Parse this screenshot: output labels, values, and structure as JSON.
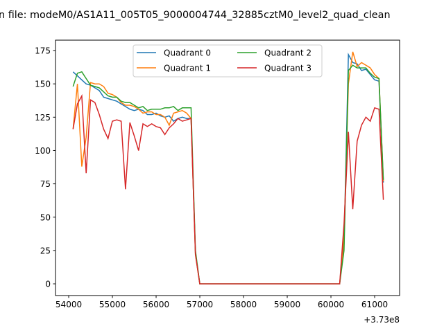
{
  "chart_data": {
    "type": "line",
    "title": "n file: modeM0/AS1A11_005T05_9000004744_32885cztM0_level2_quad_clean",
    "xlabel": "",
    "ylabel": "",
    "x_offset_label": "+3.73e8",
    "xlim": [
      53698,
      61571
    ],
    "ylim": [
      -8.8,
      182.8
    ],
    "xticks": [
      54000,
      55000,
      56000,
      57000,
      58000,
      59000,
      60000,
      61000
    ],
    "xtick_labels": [
      "54000",
      "55000",
      "56000",
      "57000",
      "58000",
      "59000",
      "60000",
      "61000"
    ],
    "yticks": [
      0,
      25,
      50,
      75,
      100,
      125,
      150,
      175
    ],
    "ytick_labels": [
      "0",
      "25",
      "50",
      "75",
      "100",
      "125",
      "150",
      "175"
    ],
    "grid": false,
    "legend_position": "top-center",
    "x_start": 54100,
    "x_step": 100,
    "series": [
      {
        "name": "Quadrant 0",
        "color": "#1f77b4",
        "values": [
          159,
          156,
          153,
          150,
          149,
          147,
          145,
          140,
          139,
          138,
          137,
          135,
          133,
          131,
          130,
          131,
          130,
          127,
          127,
          128,
          126,
          125,
          126,
          122,
          124,
          125,
          124,
          124,
          23,
          0,
          0,
          0,
          0,
          0,
          0,
          0,
          0,
          0,
          0,
          0,
          0,
          0,
          0,
          0,
          0,
          0,
          0,
          0,
          0,
          0,
          0,
          0,
          0,
          0,
          0,
          0,
          0,
          0,
          0,
          0,
          0,
          0,
          30,
          172,
          166,
          165,
          160,
          161,
          157,
          153,
          152,
          76
        ]
      },
      {
        "name": "Quadrant 1",
        "color": "#ff7f0e",
        "values": [
          116,
          150,
          88,
          110,
          151,
          150,
          150,
          148,
          143,
          142,
          140,
          136,
          134,
          134,
          133,
          131,
          128,
          129,
          129,
          127,
          127,
          125,
          119,
          128,
          129,
          130,
          128,
          124,
          22,
          0,
          0,
          0,
          0,
          0,
          0,
          0,
          0,
          0,
          0,
          0,
          0,
          0,
          0,
          0,
          0,
          0,
          0,
          0,
          0,
          0,
          0,
          0,
          0,
          0,
          0,
          0,
          0,
          0,
          0,
          0,
          0,
          0,
          35,
          150,
          174,
          163,
          166,
          164,
          162,
          157,
          154,
          77
        ]
      },
      {
        "name": "Quadrant 2",
        "color": "#2ca02c",
        "values": [
          148,
          158,
          159,
          154,
          149,
          148,
          147,
          144,
          141,
          140,
          140,
          137,
          136,
          136,
          134,
          132,
          133,
          130,
          131,
          131,
          131,
          132,
          132,
          133,
          130,
          132,
          132,
          132,
          25,
          0,
          0,
          0,
          0,
          0,
          0,
          0,
          0,
          0,
          0,
          0,
          0,
          0,
          0,
          0,
          0,
          0,
          0,
          0,
          0,
          0,
          0,
          0,
          0,
          0,
          0,
          0,
          0,
          0,
          0,
          0,
          0,
          0,
          25,
          160,
          164,
          162,
          162,
          162,
          158,
          155,
          154,
          78
        ]
      },
      {
        "name": "Quadrant 3",
        "color": "#d62728",
        "values": [
          116,
          135,
          141,
          83,
          138,
          136,
          127,
          116,
          109,
          122,
          123,
          122,
          71,
          121,
          111,
          100,
          120,
          118,
          120,
          118,
          117,
          112,
          117,
          120,
          124,
          122,
          123,
          124,
          22,
          0,
          0,
          0,
          0,
          0,
          0,
          0,
          0,
          0,
          0,
          0,
          0,
          0,
          0,
          0,
          0,
          0,
          0,
          0,
          0,
          0,
          0,
          0,
          0,
          0,
          0,
          0,
          0,
          0,
          0,
          0,
          0,
          0,
          45,
          114,
          56,
          107,
          119,
          125,
          122,
          132,
          131,
          63
        ]
      }
    ]
  }
}
